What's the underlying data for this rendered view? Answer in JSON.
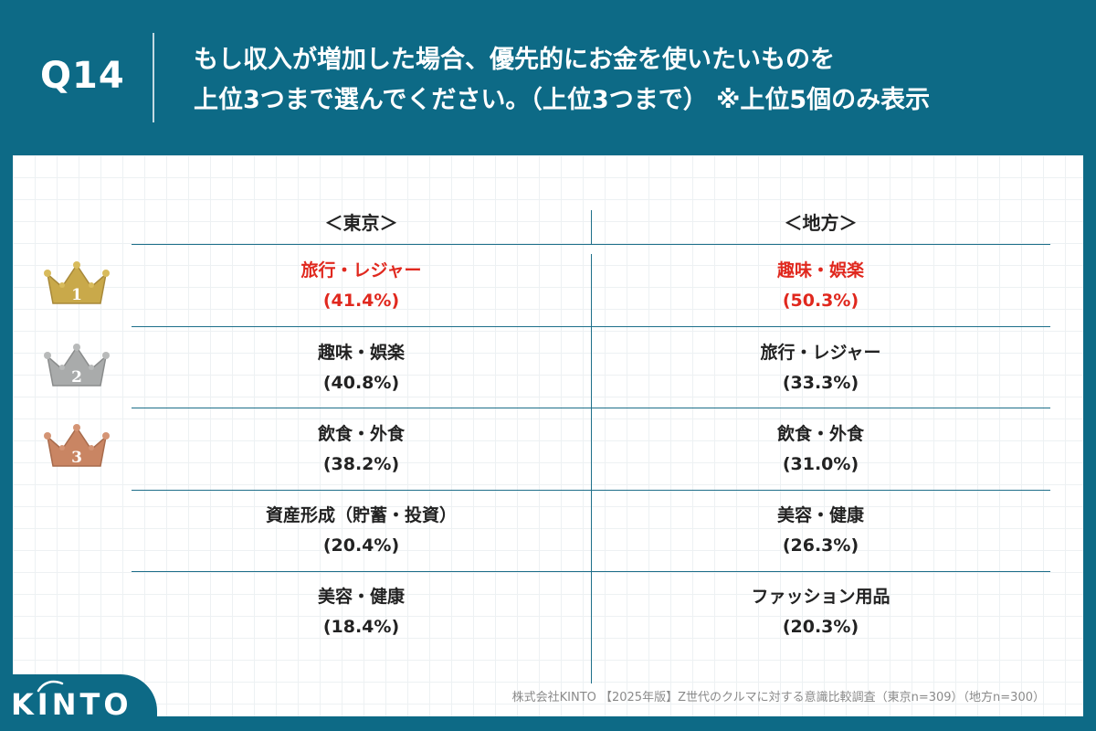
{
  "header": {
    "qnum": "Q14",
    "line1": "もし収入が増加した場合、優先的にお金を使いたいものを",
    "line2": "上位3つまで選んでください。（上位3つまで） ※上位5個のみ表示"
  },
  "columns": [
    "＜東京＞",
    "＜地方＞"
  ],
  "ranks": [
    {
      "rank": "1",
      "color": "#c9a94a"
    },
    {
      "rank": "2",
      "color": "#a9abab"
    },
    {
      "rank": "3",
      "color": "#c98563"
    }
  ],
  "rows": [
    {
      "tokyo": {
        "label": "旅行・レジャー",
        "pct": "(41.4%)"
      },
      "chiho": {
        "label": "趣味・娯楽",
        "pct": "(50.3%)"
      }
    },
    {
      "tokyo": {
        "label": "趣味・娯楽",
        "pct": "(40.8%)"
      },
      "chiho": {
        "label": "旅行・レジャー",
        "pct": "(33.3%)"
      }
    },
    {
      "tokyo": {
        "label": "飲食・外食",
        "pct": "(38.2%)"
      },
      "chiho": {
        "label": "飲食・外食",
        "pct": "(31.0%)"
      }
    },
    {
      "tokyo": {
        "label": "資産形成（貯蓄・投資）",
        "pct": "(20.4%)"
      },
      "chiho": {
        "label": "美容・健康",
        "pct": "(26.3%)"
      }
    },
    {
      "tokyo": {
        "label": "美容・健康",
        "pct": "(18.4%)"
      },
      "chiho": {
        "label": "ファッション用品",
        "pct": "(20.3%)"
      }
    }
  ],
  "footer": {
    "note": "株式会社KINTO 【2025年版】Z世代のクルマに対する意識比較調査（東京n=309）（地方n=300）",
    "logo": "KINTO"
  },
  "colors": {
    "brand": "#0d6a86",
    "highlight": "#e0281e"
  }
}
